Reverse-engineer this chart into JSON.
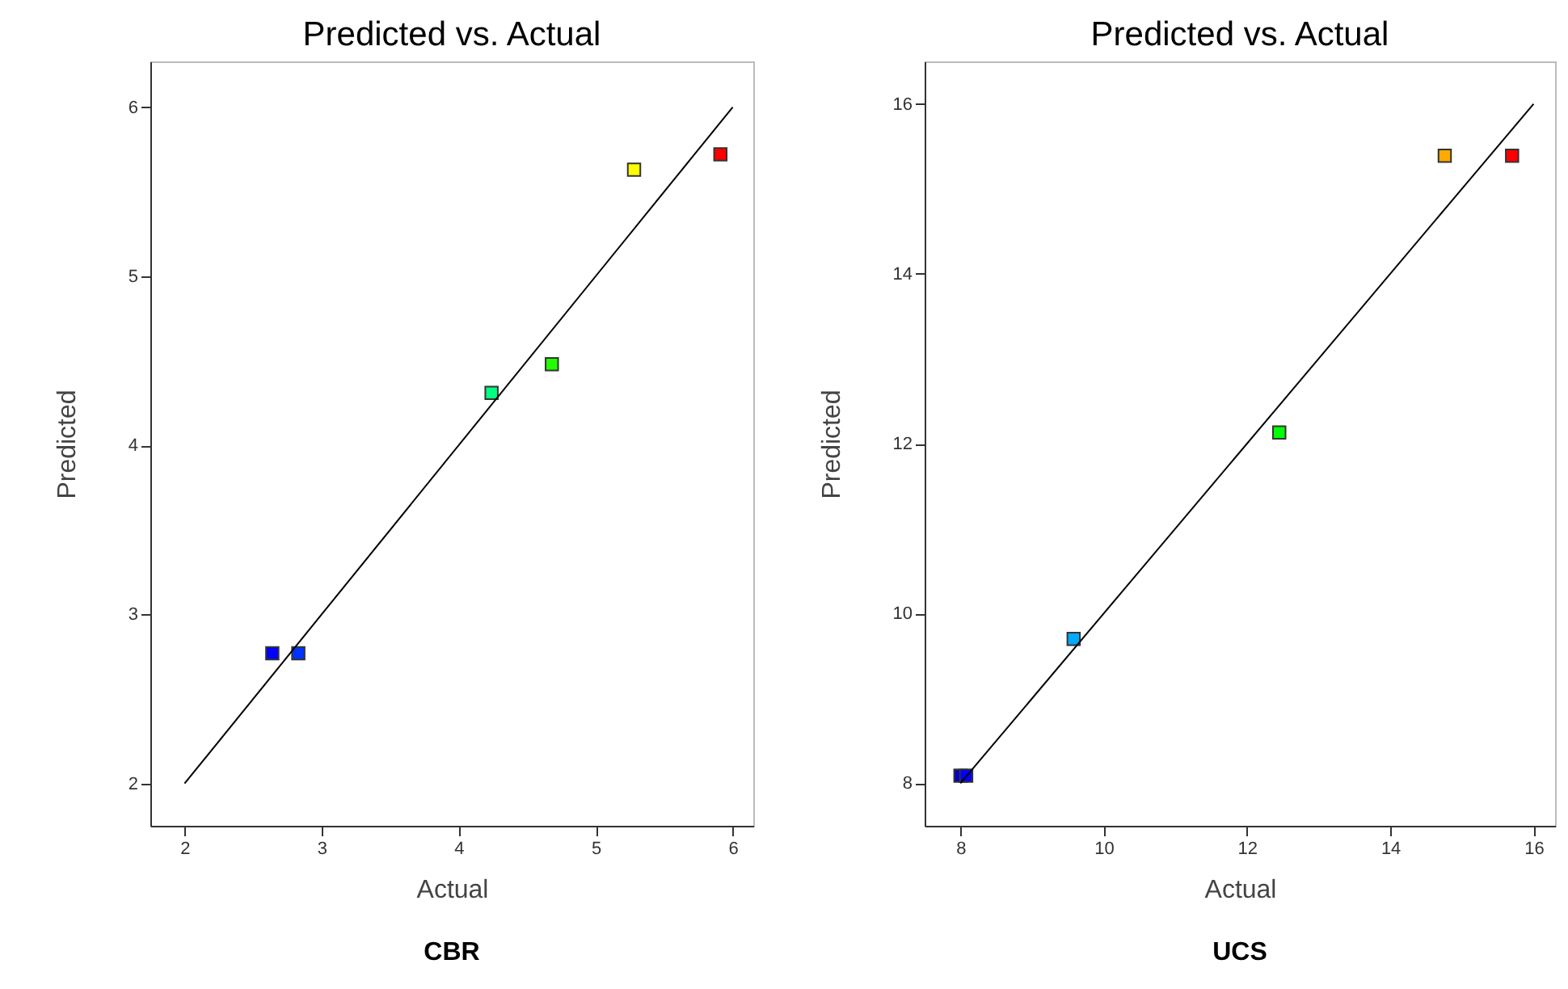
{
  "chart_data": [
    {
      "type": "scatter",
      "title": "Predicted vs. Actual",
      "xlabel": "Actual",
      "ylabel": "Predicted",
      "grid": false,
      "xlim": [
        1.75,
        6.15
      ],
      "xticks": [
        2,
        3,
        4,
        5,
        6
      ],
      "ylim": [
        1.75,
        6.27
      ],
      "yticks": [
        2,
        3,
        4,
        5,
        6
      ],
      "series": [
        {
          "marker": "square",
          "x": [
            2.64,
            2.83,
            4.24,
            4.68,
            5.28,
            5.91
          ],
          "values": [
            2.77,
            2.77,
            4.31,
            4.48,
            5.63,
            5.72
          ],
          "colors": [
            "#0000ff",
            "#0033ff",
            "#00ff80",
            "#22ff00",
            "#ffff00",
            "#ff0000"
          ]
        },
        {
          "type": "line",
          "x": [
            2,
            6
          ],
          "values": [
            2,
            6
          ],
          "color": "#000000"
        }
      ],
      "annotations": [
        "CBR"
      ]
    },
    {
      "type": "scatter",
      "title": "Predicted vs. Actual",
      "xlabel": "Actual",
      "ylabel": "Predicted",
      "grid": false,
      "xlim": [
        7.5,
        16.3
      ],
      "xticks": [
        8,
        10,
        12,
        14,
        16
      ],
      "ylim": [
        7.5,
        16.5
      ],
      "yticks": [
        8,
        10,
        12,
        14,
        16
      ],
      "series": [
        {
          "marker": "square",
          "x": [
            8.0,
            8.08,
            9.58,
            12.45,
            14.76,
            15.7
          ],
          "values": [
            8.09,
            8.09,
            9.7,
            12.13,
            15.39,
            15.39
          ],
          "colors": [
            "#0000cc",
            "#0000ff",
            "#00aaff",
            "#00ff00",
            "#ffaa00",
            "#ff0000"
          ]
        },
        {
          "type": "line",
          "x": [
            8,
            16
          ],
          "values": [
            8,
            16
          ],
          "color": "#000000"
        }
      ],
      "annotations": [
        "UCS"
      ]
    }
  ]
}
